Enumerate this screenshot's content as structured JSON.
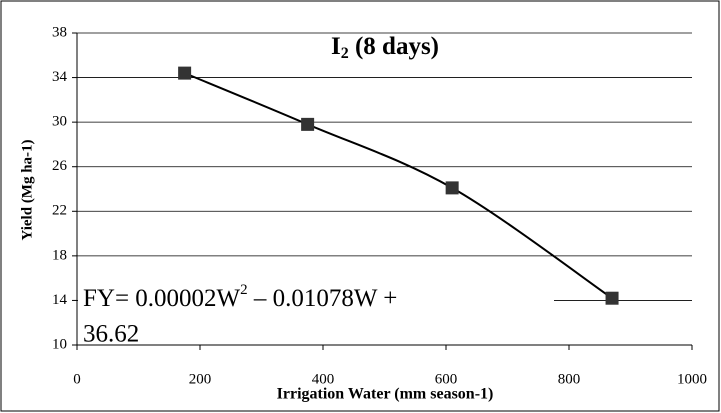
{
  "chart_data": {
    "type": "scatter",
    "title": {
      "parts": [
        "I",
        "2",
        " (8 days)"
      ]
    },
    "x_label": "Irrigation Water (mm season-1)",
    "y_label": "Yield (Mg ha-1)",
    "annotation": {
      "parts": [
        "FY= 0.00002W",
        "2",
        " – 0.01078W +",
        "36.62"
      ]
    },
    "series": [
      {
        "color": "#333333",
        "x": [
          175,
          375,
          610,
          870
        ],
        "values": [
          34.4,
          29.8,
          24.1,
          14.2
        ]
      }
    ],
    "trendline": true,
    "xlim": [
      0,
      1000
    ],
    "xticks": [
      0,
      200,
      400,
      600,
      800,
      1000
    ],
    "ylim": [
      10,
      38
    ],
    "yticks": [
      10,
      14,
      18,
      22,
      26,
      30,
      34,
      38
    ],
    "grid": true
  }
}
